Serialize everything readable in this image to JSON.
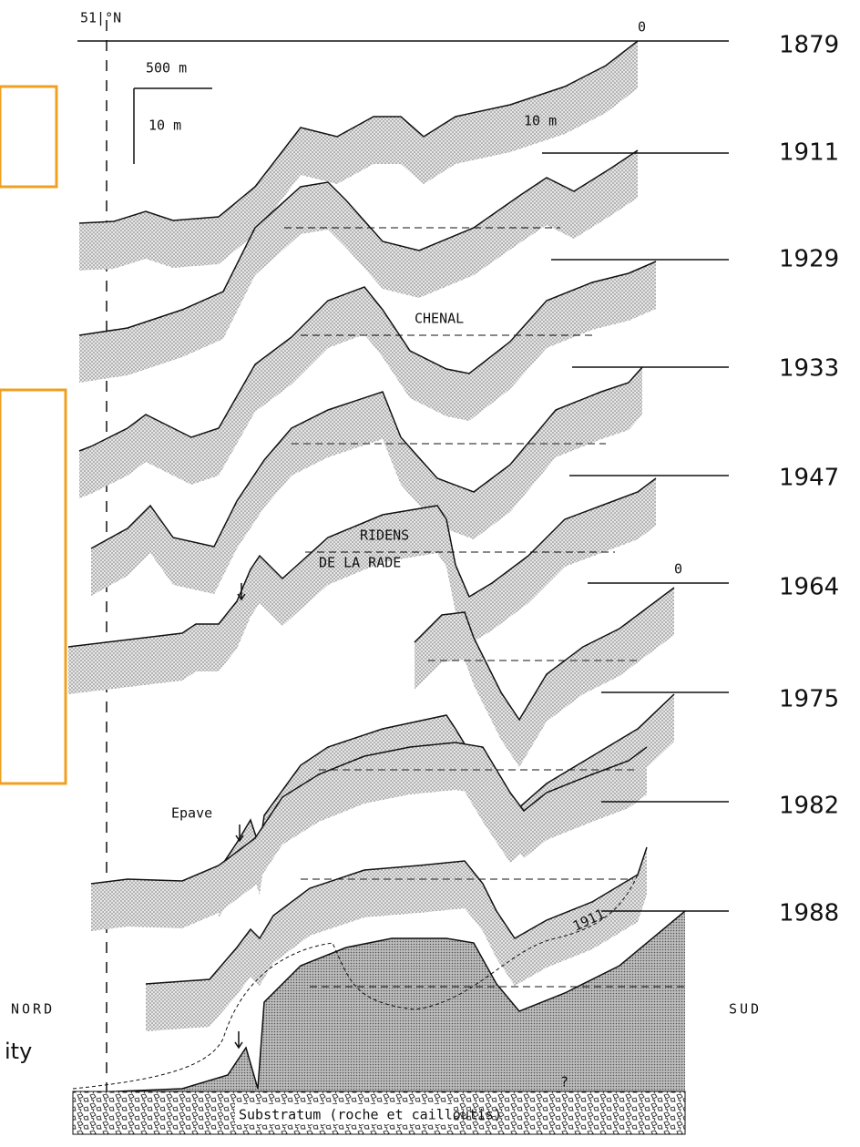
{
  "header": {
    "latitude": "51|°N"
  },
  "scale": {
    "horizontal": "500 m",
    "vertical": "10 m"
  },
  "zero_marks": [
    "0",
    "0"
  ],
  "years": [
    "1879",
    "1911",
    "1929",
    "1933",
    "1947",
    "1964",
    "1975",
    "1982",
    "1988"
  ],
  "annotations": {
    "depth": "10 m",
    "channel": "CHENAL",
    "ridens_1": "RIDENS",
    "ridens_2": "DE LA RADE",
    "wreck": "Epave",
    "north": "NORD",
    "south": "SUD",
    "profile_1911": "1911",
    "question": "?",
    "substratum": "Substratum (roche et cailloutis)"
  },
  "fragment": "ity"
}
